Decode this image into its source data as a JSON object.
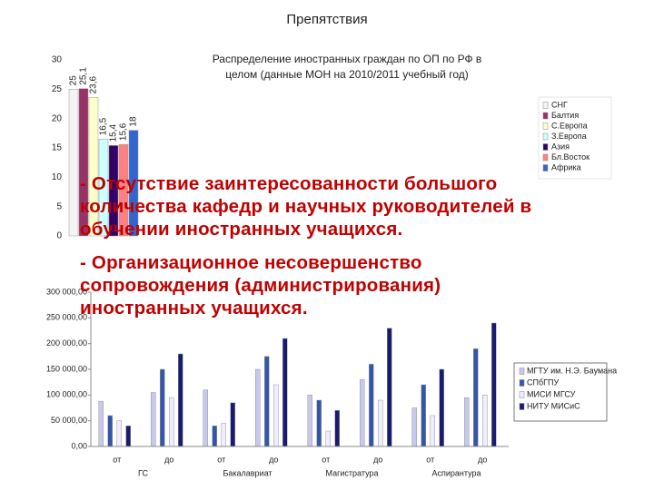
{
  "title": "Препятствия",
  "bullets": [
    "- Отсутствие заинтересованности большого количества кафедр и научных руководителей в обучении иностранных учащихся.",
    "- Организационное несовершенство сопровождения (администрирования) иностранных учащихся."
  ],
  "chart_data": [
    {
      "type": "bar",
      "title": "Распределение иностранных граждан по ОП по РФ в целом (данные МОН на 2010/2011 учебный год)",
      "ylim": [
        0,
        30
      ],
      "yticks": [
        0,
        5,
        10,
        15,
        20,
        25,
        30
      ],
      "series": [
        {
          "name": "СНГ",
          "color": "#f4f4f4",
          "values": [
            25
          ]
        },
        {
          "name": "Балтия",
          "color": "#993366",
          "values": [
            25.1
          ],
          "value_labels": [
            "25,1"
          ]
        },
        {
          "name": "С.Европа",
          "color": "#ffffcc",
          "values": [
            23.6
          ],
          "value_labels": [
            "23,6"
          ]
        },
        {
          "name": "З.Европа",
          "color": "#ccffff",
          "values": [
            16.5
          ],
          "value_labels": [
            "16,5"
          ]
        },
        {
          "name": "Азия",
          "color": "#330066",
          "values": [
            15.4
          ],
          "value_labels": [
            "15,4"
          ]
        },
        {
          "name": "Бл.Восток",
          "color": "#ff8080",
          "values": [
            15.6
          ],
          "value_labels": [
            "15,6"
          ]
        },
        {
          "name": "Африка",
          "color": "#3366cc",
          "values": [
            18
          ]
        }
      ]
    },
    {
      "type": "grouped_bar",
      "categories": [
        "от",
        "до",
        "от",
        "до",
        "от",
        "до",
        "от",
        "до"
      ],
      "groups": [
        "ГС",
        "Бакалавриат",
        "Магистратура",
        "Аспирантура"
      ],
      "ylim": [
        0,
        300000
      ],
      "yticks": [
        {
          "value": 0,
          "label": "0,00"
        },
        {
          "value": 50000,
          "label": "50 000,00"
        },
        {
          "value": 100000,
          "label": "100 000,00"
        },
        {
          "value": 150000,
          "label": "150 000,00"
        },
        {
          "value": 200000,
          "label": "200 000,00"
        },
        {
          "value": 250000,
          "label": "250 000,00"
        },
        {
          "value": 300000,
          "label": "300 000,00"
        }
      ],
      "series": [
        {
          "name": "МГТУ им. Н.Э. Баумана",
          "color": "#c8c8ee",
          "values": [
            88000,
            105000,
            110000,
            150000,
            100000,
            130000,
            75000,
            95000
          ]
        },
        {
          "name": "СПбГПУ",
          "color": "#3355aa",
          "values": [
            60000,
            150000,
            40000,
            175000,
            90000,
            160000,
            120000,
            190000
          ]
        },
        {
          "name": "МИСИ МГСУ",
          "color": "#eeeeff",
          "values": [
            50000,
            95000,
            45000,
            120000,
            30000,
            90000,
            60000,
            100000
          ]
        },
        {
          "name": "НИТУ МИСиС",
          "color": "#1a1a70",
          "values": [
            40000,
            180000,
            85000,
            210000,
            70000,
            230000,
            150000,
            240000
          ]
        }
      ]
    }
  ]
}
